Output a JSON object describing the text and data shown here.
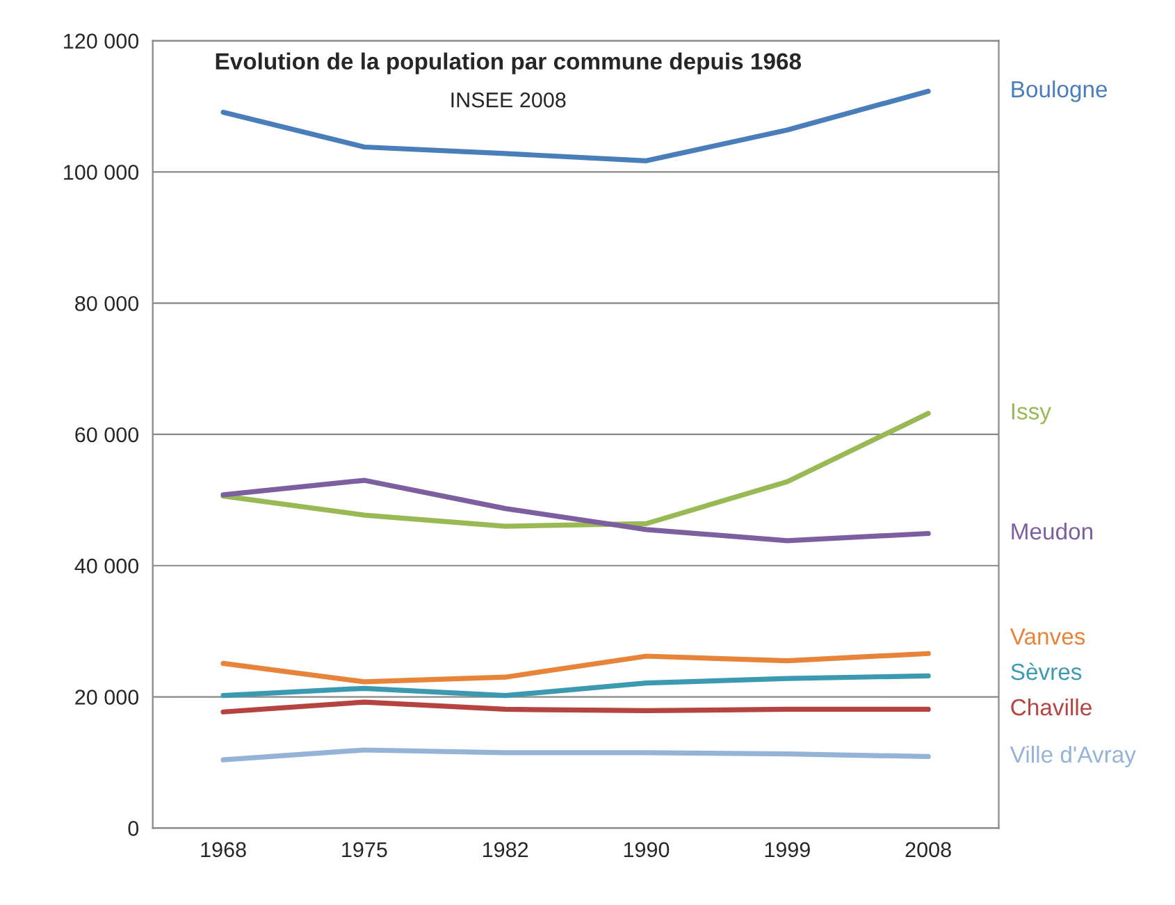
{
  "chart_data": {
    "type": "line",
    "title": "Evolution de la population par commune depuis 1968",
    "subtitle": "INSEE 2008",
    "categories": [
      "1968",
      "1975",
      "1982",
      "1990",
      "1999",
      "2008"
    ],
    "series": [
      {
        "name": "Boulogne",
        "color": "#4a7ebb",
        "values": [
          109100,
          103800,
          102800,
          101700,
          106400,
          112300
        ]
      },
      {
        "name": "Issy",
        "color": "#98b954",
        "values": [
          50600,
          47700,
          46000,
          46400,
          52800,
          63200
        ]
      },
      {
        "name": "Meudon",
        "color": "#7d5fa0",
        "values": [
          50800,
          53000,
          48700,
          45500,
          43800,
          44900
        ]
      },
      {
        "name": "Vanves",
        "color": "#e8843a",
        "values": [
          25100,
          22300,
          23000,
          26200,
          25500,
          26600
        ]
      },
      {
        "name": "Sèvres",
        "color": "#3b9ab0",
        "values": [
          20200,
          21300,
          20200,
          22100,
          22800,
          23200
        ]
      },
      {
        "name": "Chaville",
        "color": "#b5433f",
        "values": [
          17700,
          19200,
          18100,
          17900,
          18100,
          18100
        ]
      },
      {
        "name": "Ville d'Avray",
        "color": "#95b3d7",
        "values": [
          10400,
          11900,
          11500,
          11500,
          11300,
          10900
        ]
      }
    ],
    "ylim": [
      0,
      120000
    ],
    "yticks": [
      0,
      {
        "value": 20000,
        "label": "20 000"
      },
      {
        "value": 40000,
        "label": "40 000"
      },
      {
        "value": 60000,
        "label": "60 000"
      },
      {
        "value": 80000,
        "label": "80 000"
      },
      {
        "value": 100000,
        "label": "100 000"
      },
      {
        "value": 120000,
        "label": "120 000"
      }
    ],
    "grid": "y",
    "legend": false,
    "marker": "none",
    "line_style": "solid"
  }
}
